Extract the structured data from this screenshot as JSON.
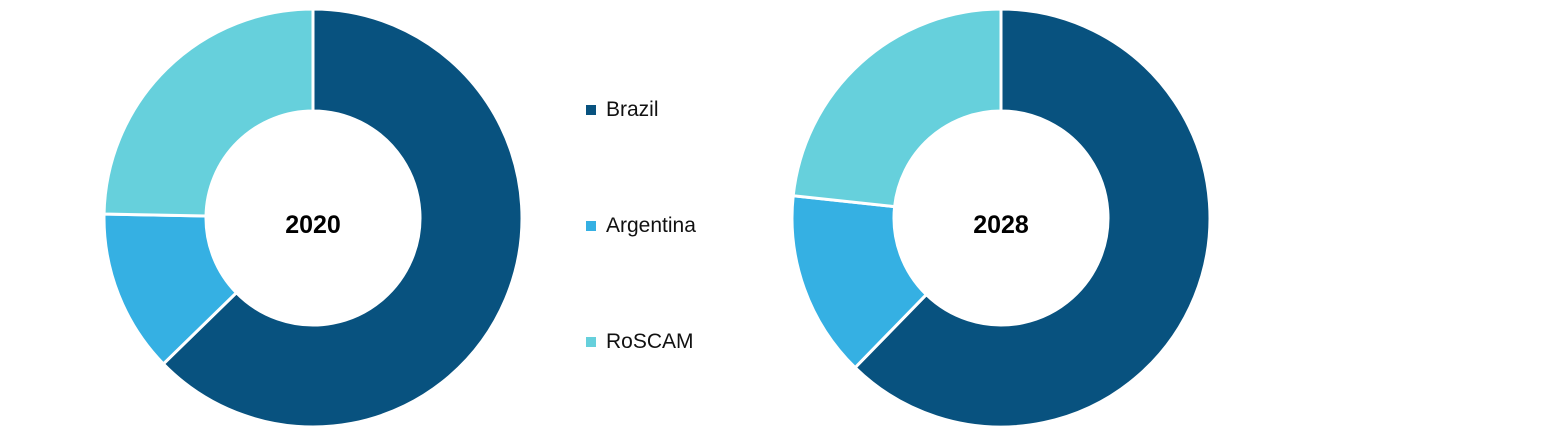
{
  "chart_data": {
    "type": "pie",
    "legend_position": "between-charts",
    "categories": [
      "Brazil",
      "Argentina",
      "RoSCAM"
    ],
    "colors": [
      "#08527f",
      "#35b0e3",
      "#66d0dc"
    ],
    "charts": [
      {
        "center_label": "2020",
        "values": [
          62.7,
          12.6,
          24.7
        ]
      },
      {
        "center_label": "2028",
        "values": [
          62.3,
          14.4,
          23.3
        ]
      }
    ]
  }
}
